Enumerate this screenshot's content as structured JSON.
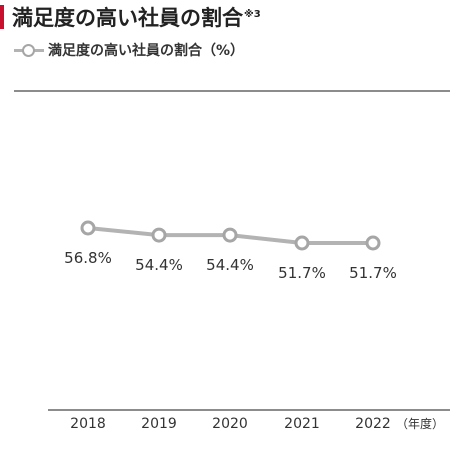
{
  "title": "満足度の高い社員の割合",
  "title_note": "※3",
  "chart_data": {
    "type": "line",
    "categories": [
      "2018",
      "2019",
      "2020",
      "2021",
      "2022"
    ],
    "series": [
      {
        "name": "満足度の高い社員の割合（%）",
        "values": [
          56.8,
          54.4,
          54.4,
          51.7,
          51.7
        ],
        "labels": [
          "56.8%",
          "54.4%",
          "54.4%",
          "51.7%",
          "51.7%"
        ]
      }
    ],
    "xlabel_suffix": "（年度）",
    "ylim": [
      0,
      100
    ],
    "colors": {
      "line": "#b3b3b3",
      "marker": "#a6a6a6",
      "accent": "#c8102e"
    }
  }
}
